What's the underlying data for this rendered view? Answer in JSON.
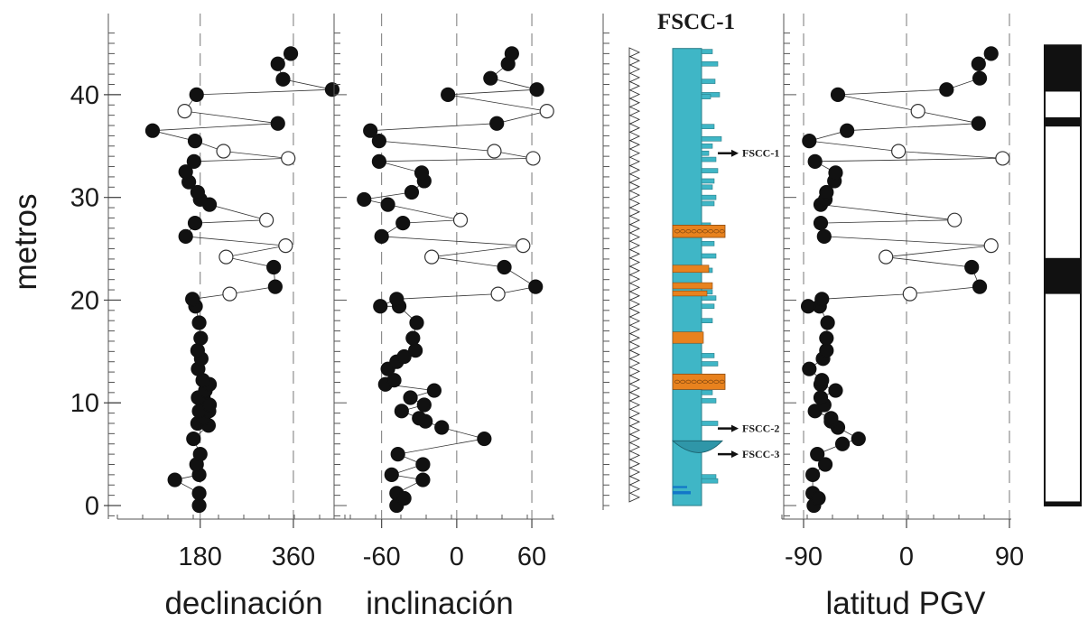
{
  "chart_data": [
    {
      "type": "scatter",
      "title": "",
      "xlabel": "declinación",
      "ylabel": "metros",
      "xticks": [
        "180",
        "360"
      ],
      "yticks": [
        "0",
        "10",
        "20",
        "30",
        "40"
      ],
      "xlim": [
        20,
        470
      ],
      "ylim": [
        0,
        45
      ],
      "series": [
        {
          "points": [
            [
              178,
              0
            ],
            [
              178,
              1.2
            ],
            [
              178,
              3
            ],
            [
              173,
              4
            ],
            [
              180,
              5
            ],
            [
              167,
              6.5
            ],
            [
              175,
              8
            ],
            [
              196,
              7.8
            ],
            [
              186,
              8.5
            ],
            [
              197,
              9.2
            ],
            [
              178,
              9.2
            ],
            [
              186,
              10.5
            ],
            [
              198,
              9.8
            ],
            [
              176,
              10.5
            ],
            [
              190,
              11.2
            ],
            [
              198,
              11.8
            ],
            [
              185,
              12.2
            ],
            [
              176,
              13.3
            ],
            [
              182,
              14.3
            ],
            [
              175,
              15.1
            ],
            [
              181,
              16.3
            ],
            [
              178,
              17.8
            ],
            [
              171,
              19.4
            ],
            [
              165,
              20.1
            ],
            [
              325,
              21.3
            ],
            [
              322,
              23.2
            ],
            [
              152,
              26.2
            ],
            [
              170,
              27.5
            ],
            [
              198,
              29.3
            ],
            [
              180,
              29.8
            ],
            [
              175,
              30.5
            ],
            [
              158,
              31.5
            ],
            [
              152,
              32.5
            ],
            [
              168,
              33.5
            ],
            [
              170,
              35.5
            ],
            [
              88,
              36.5
            ],
            [
              330,
              37.2
            ],
            [
              173,
              40.0
            ],
            [
              435,
              40.5
            ],
            [
              340,
              41.5
            ],
            [
              330,
              43.0
            ],
            [
              355,
              44.0
            ],
            [
              131,
              2.5
            ]
          ],
          "filled": true
        },
        {
          "points": [
            [
              237,
              20.6
            ],
            [
              230,
              24.2
            ],
            [
              345,
              25.3
            ],
            [
              308,
              27.8
            ],
            [
              350,
              33.8
            ],
            [
              225,
              34.5
            ],
            [
              150,
              38.4
            ]
          ],
          "filled": false
        }
      ]
    },
    {
      "type": "scatter",
      "xlabel": "inclinación",
      "xticks": [
        "-60",
        "0",
        "60"
      ],
      "xlim": [
        -85,
        78
      ],
      "ylim": [
        0,
        45
      ],
      "series": [
        {
          "points": [
            [
              -48,
              0
            ],
            [
              -48,
              1.2
            ],
            [
              -42,
              0.7
            ],
            [
              -52,
              3
            ],
            [
              -47,
              5
            ],
            [
              -27,
              2.5
            ],
            [
              -27,
              4
            ],
            [
              22,
              6.5
            ],
            [
              -12,
              7.6
            ],
            [
              -25,
              8.2
            ],
            [
              -30,
              8.5
            ],
            [
              -44,
              9.2
            ],
            [
              -26,
              9.8
            ],
            [
              -37,
              10.5
            ],
            [
              -18,
              11.2
            ],
            [
              -57,
              11.8
            ],
            [
              -50,
              12.2
            ],
            [
              -55,
              13.3
            ],
            [
              -48,
              14
            ],
            [
              -42,
              14.5
            ],
            [
              -33,
              15.1
            ],
            [
              -35,
              16.3
            ],
            [
              -32,
              17.8
            ],
            [
              -46,
              19.4
            ],
            [
              -61,
              19.4
            ],
            [
              -48,
              20.1
            ],
            [
              63,
              21.3
            ],
            [
              38,
              23.2
            ],
            [
              -60,
              26.2
            ],
            [
              -43,
              27.5
            ],
            [
              -55,
              29.3
            ],
            [
              -74,
              29.8
            ],
            [
              -36,
              30.5
            ],
            [
              -26,
              31.6
            ],
            [
              -28,
              32.4
            ],
            [
              -62,
              33.5
            ],
            [
              -62,
              35.5
            ],
            [
              -69,
              36.5
            ],
            [
              32,
              37.2
            ],
            [
              -7,
              40
            ],
            [
              64,
              40.5
            ],
            [
              27,
              41.6
            ],
            [
              41,
              43
            ],
            [
              44,
              44
            ]
          ],
          "filled": true
        },
        {
          "points": [
            [
              33,
              20.6
            ],
            [
              -20,
              24.2
            ],
            [
              53,
              25.3
            ],
            [
              3,
              27.8
            ],
            [
              61,
              33.8
            ],
            [
              30,
              34.5
            ],
            [
              72,
              38.4
            ]
          ],
          "filled": false
        }
      ]
    },
    {
      "type": "scatter",
      "xlabel": "latitud PGV",
      "xticks": [
        "-90",
        "0",
        "90"
      ],
      "xlim": [
        -90,
        90
      ],
      "ylim": [
        0,
        45
      ],
      "series": [
        {
          "points": [
            [
              -81,
              0
            ],
            [
              -82,
              1.2
            ],
            [
              -77,
              0.7
            ],
            [
              -82,
              3
            ],
            [
              -71,
              4
            ],
            [
              -78,
              5
            ],
            [
              -56,
              6
            ],
            [
              -42,
              6.5
            ],
            [
              -60,
              7.6
            ],
            [
              -66,
              8.2
            ],
            [
              -66,
              8.5
            ],
            [
              -80,
              9.2
            ],
            [
              -72,
              9.8
            ],
            [
              -75,
              10.5
            ],
            [
              -62,
              11.2
            ],
            [
              -75,
              11.8
            ],
            [
              -74,
              12.2
            ],
            [
              -85,
              13.3
            ],
            [
              -73,
              14.3
            ],
            [
              -70,
              15.1
            ],
            [
              -70,
              16.3
            ],
            [
              -69,
              17.8
            ],
            [
              -76,
              19.4
            ],
            [
              -86,
              19.4
            ],
            [
              -74,
              20.1
            ],
            [
              64,
              21.3
            ],
            [
              57,
              23.2
            ],
            [
              -72,
              26.2
            ],
            [
              -75,
              27.5
            ],
            [
              -75,
              29.3
            ],
            [
              -71,
              29.8
            ],
            [
              -70,
              30.5
            ],
            [
              -63,
              31.6
            ],
            [
              -62,
              32.4
            ],
            [
              -80,
              33.5
            ],
            [
              -85,
              35.5
            ],
            [
              -52,
              36.5
            ],
            [
              63,
              37.2
            ],
            [
              -60,
              40
            ],
            [
              35,
              40.5
            ],
            [
              64,
              41.6
            ],
            [
              63,
              43
            ],
            [
              74,
              44
            ]
          ],
          "filled": true
        },
        {
          "points": [
            [
              3,
              20.6
            ],
            [
              -18,
              24.2
            ],
            [
              74,
              25.3
            ],
            [
              42,
              27.8
            ],
            [
              84,
              33.8
            ],
            [
              -7,
              34.5
            ],
            [
              10,
              38.4
            ]
          ],
          "filled": false
        }
      ]
    }
  ],
  "section": {
    "title": "FSCC-1",
    "samples": [
      {
        "label": "FSCC-1",
        "level": 34.3
      },
      {
        "label": "FSCC-2",
        "level": 7.5
      },
      {
        "label": "FSCC-3",
        "level": 5.0
      }
    ]
  },
  "polarity": {
    "normal_intervals": [
      [
        20.6,
        24.1
      ],
      [
        36.9,
        37.8
      ],
      [
        40.3,
        44.8
      ]
    ]
  },
  "colors": {
    "strata": "#3fb6c6",
    "conglomerate": "#e8821e",
    "dark_bed": "#1277c8",
    "normal": "#111111",
    "reversed": "#ffffff"
  }
}
